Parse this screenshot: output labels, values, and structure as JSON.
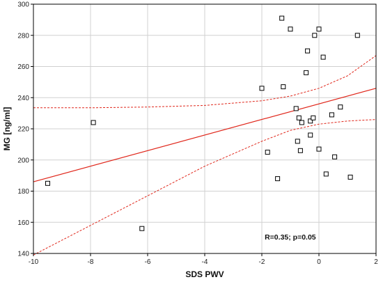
{
  "chart_data": {
    "type": "scatter",
    "title": "",
    "xlabel": "SDS PWV",
    "ylabel": "MG [ng/ml]",
    "xlim": [
      -10,
      2
    ],
    "ylim": [
      140,
      300
    ],
    "xticks": [
      "-10",
      "-8",
      "-6",
      "-4",
      "-2",
      "0",
      "2"
    ],
    "yticks": [
      "140",
      "160",
      "180",
      "200",
      "220",
      "240",
      "260",
      "280",
      "300"
    ],
    "grid": true,
    "annotation": "R=0.35; p=0.05",
    "colors": {
      "fit": "#e0261a",
      "marker": "#000000",
      "grid": "#d0d0d0"
    },
    "points": [
      {
        "x": -9.5,
        "y": 185
      },
      {
        "x": -7.9,
        "y": 224
      },
      {
        "x": -6.2,
        "y": 156
      },
      {
        "x": -2.0,
        "y": 246
      },
      {
        "x": -1.8,
        "y": 205
      },
      {
        "x": -1.45,
        "y": 188
      },
      {
        "x": -1.3,
        "y": 291
      },
      {
        "x": -1.25,
        "y": 247
      },
      {
        "x": -1.0,
        "y": 284
      },
      {
        "x": -0.8,
        "y": 233
      },
      {
        "x": -0.75,
        "y": 212
      },
      {
        "x": -0.7,
        "y": 227
      },
      {
        "x": -0.65,
        "y": 206
      },
      {
        "x": -0.6,
        "y": 224
      },
      {
        "x": -0.45,
        "y": 256
      },
      {
        "x": -0.4,
        "y": 270
      },
      {
        "x": -0.3,
        "y": 225
      },
      {
        "x": -0.3,
        "y": 216
      },
      {
        "x": -0.2,
        "y": 227
      },
      {
        "x": -0.15,
        "y": 280
      },
      {
        "x": 0.0,
        "y": 284
      },
      {
        "x": 0.0,
        "y": 207
      },
      {
        "x": 0.15,
        "y": 266
      },
      {
        "x": 0.25,
        "y": 191
      },
      {
        "x": 0.45,
        "y": 229
      },
      {
        "x": 0.55,
        "y": 202
      },
      {
        "x": 0.75,
        "y": 234
      },
      {
        "x": 1.1,
        "y": 189
      },
      {
        "x": 1.35,
        "y": 280
      }
    ],
    "fit_line": {
      "x": [
        -10,
        2
      ],
      "y": [
        186,
        246
      ]
    },
    "confidence_upper": {
      "x": [
        -10,
        -8,
        -6,
        -4,
        -2,
        -1,
        0,
        1,
        2
      ],
      "y": [
        233.5,
        233.5,
        234,
        235,
        238,
        241,
        246,
        254,
        267
      ]
    },
    "confidence_lower": {
      "x": [
        -10,
        -8,
        -6,
        -4,
        -2,
        -1,
        0,
        1,
        2
      ],
      "y": [
        139,
        158,
        177,
        196,
        212,
        219,
        223,
        225,
        226
      ]
    }
  }
}
